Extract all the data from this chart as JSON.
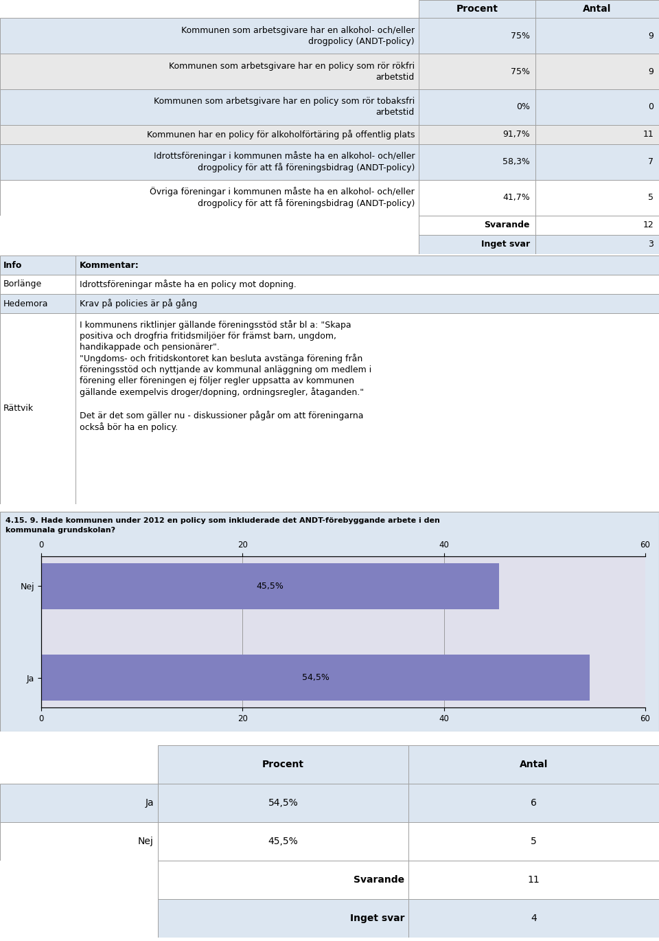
{
  "table1_rows": [
    {
      "label": "Kommunen som arbetsgivare har en alkohol- och/eller\ndrogpolicy (ANDT-policy)",
      "procent": "75%",
      "antal": "9",
      "bg": "#dce6f1",
      "lines": 2
    },
    {
      "label": "Kommunen som arbetsgivare har en policy som rör rökfri\narbetstid",
      "procent": "75%",
      "antal": "9",
      "bg": "#e8e8e8",
      "lines": 2
    },
    {
      "label": "Kommunen som arbetsgivare har en policy som rör tobaksfri\narbetstid",
      "procent": "0%",
      "antal": "0",
      "bg": "#dce6f1",
      "lines": 2
    },
    {
      "label": "Kommunen har en policy för alkoholförtäring på offentlig plats",
      "procent": "91,7%",
      "antal": "11",
      "bg": "#e8e8e8",
      "lines": 1
    },
    {
      "label": "Idrottsföreningar i kommunen måste ha en alkohol- och/eller\ndrogpolicy för att få föreningsbidrag (ANDT-policy)",
      "procent": "58,3%",
      "antal": "7",
      "bg": "#dce6f1",
      "lines": 2
    },
    {
      "label": "Övriga föreningar i kommunen måste ha en alkohol- och/eller\ndrogpolicy för att få föreningsbidrag (ANDT-policy)",
      "procent": "41,7%",
      "antal": "5",
      "bg": "#ffffff",
      "lines": 2
    }
  ],
  "table1_footer": [
    {
      "label": "Svarande",
      "antal": "12",
      "bg": "#ffffff"
    },
    {
      "label": "Inget svar",
      "antal": "3",
      "bg": "#dce6f1"
    }
  ],
  "table1_header_bg": "#dce6f1",
  "comment_rows": [
    {
      "info": "Info",
      "kommentar": "Kommentar:",
      "bold": true,
      "bg": "#dce6f1"
    },
    {
      "info": "Borlänge",
      "kommentar": "Idrottsföreningar måste ha en policy mot dopning.",
      "bold": false,
      "bg": "#ffffff"
    },
    {
      "info": "Hedemora",
      "kommentar": "Krav på policies är på gång",
      "bold": false,
      "bg": "#dce6f1"
    },
    {
      "info": "Rättvik",
      "kommentar": "I kommunens riktlinjer gällande föreningsstöd står bl a: \"Skapa\npositiva och drogfria fritidsmiljöer för främst barn, ungdom,\nhandikappade och pensionärer\".\n\"Ungdoms- och fritidskontoret kan besluta avstänga förening från\nföreningsstöd och nyttjande av kommunal anläggning om medlem i\nförening eller föreningen ej följer regler uppsatta av kommunen\ngällande exempelvis droger/dopning, ordningsregler, åtaganden.\"\n\nDet är det som gäller nu - diskussioner pågår om att föreningarna\nockså bör ha en policy.",
      "bold": false,
      "bg": "#ffffff"
    }
  ],
  "chart_title": "4.15. 9. Hade kommunen under 2012 en policy som inkluderade det ANDT-förebyggande arbete i den\nkommunala grundskolan?",
  "chart_categories": [
    "Ja",
    "Nej"
  ],
  "chart_values": [
    54.5,
    45.5
  ],
  "chart_labels": [
    "54,5%",
    "45,5%"
  ],
  "chart_xlim": [
    0,
    60
  ],
  "chart_xticks": [
    0,
    20,
    40,
    60
  ],
  "chart_bar_color": "#8080c0",
  "chart_bg": "#dce6f1",
  "chart_plot_bg": "#e0e0ec",
  "table2_rows": [
    {
      "label": "Ja",
      "procent": "54,5%",
      "antal": "6",
      "bg": "#dce6f1"
    },
    {
      "label": "Nej",
      "procent": "45,5%",
      "antal": "5",
      "bg": "#ffffff"
    }
  ],
  "table2_footer": [
    {
      "label": "Svarande",
      "antal": "11",
      "bg": "#ffffff"
    },
    {
      "label": "Inget svar",
      "antal": "4",
      "bg": "#dce6f1"
    }
  ],
  "col_header_bg": "#dce6f1",
  "outer_bg": "#ffffff",
  "border_color": "#a0a0a0",
  "font_size": 9
}
